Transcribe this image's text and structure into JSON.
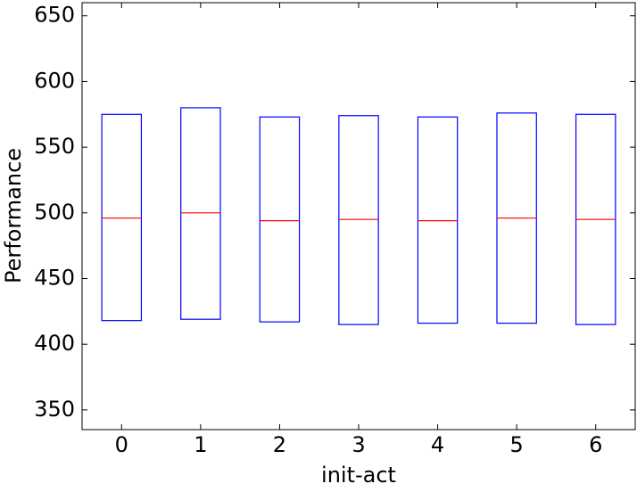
{
  "chart_data": {
    "type": "box",
    "xlabel": "init-act",
    "ylabel": "Performance",
    "categories": [
      "0",
      "1",
      "2",
      "3",
      "4",
      "5",
      "6"
    ],
    "q1": [
      418,
      419,
      417,
      415,
      416,
      416,
      415
    ],
    "median": [
      496,
      500,
      494,
      495,
      494,
      496,
      495
    ],
    "q3": [
      575,
      580,
      573,
      574,
      573,
      576,
      575
    ],
    "box_color": "#0000ff",
    "median_color": "#ff0000",
    "ylim": [
      335,
      660
    ],
    "yticks": [
      350,
      400,
      450,
      500,
      550,
      600,
      650
    ],
    "grid": false
  }
}
